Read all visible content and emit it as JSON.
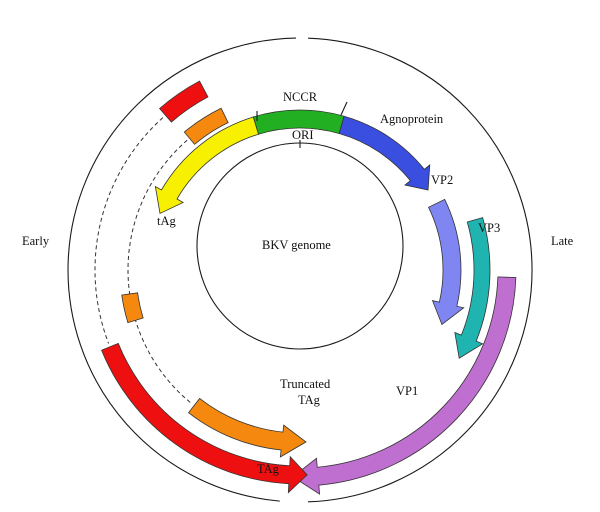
{
  "labels": {
    "ncrr": "NCCR",
    "ori": "ORI",
    "agnoprotein": "Agnoprotein",
    "vp2": "VP2",
    "vp3": "VP3",
    "vp1": "VP1",
    "tag_small": "tAg",
    "truncated_line1": "Truncated",
    "truncated_line2": "TAg",
    "tag_large": "TAg",
    "early": "Early",
    "late": "Late",
    "genome": "BKV genome"
  },
  "colors": {
    "ncrr": "#22b022",
    "agnoprotein": "#3a4fe0",
    "vp2": "#7f86f2",
    "vp3": "#20b4b0",
    "vp1": "#bf6fcf",
    "tag_small": "#f7f000",
    "orange": "#f5890f",
    "red": "#ee1010"
  }
}
